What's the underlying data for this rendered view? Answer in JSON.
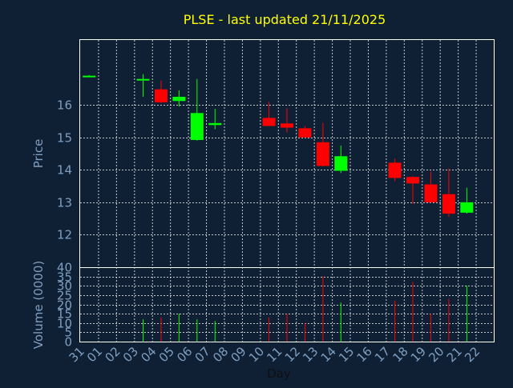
{
  "title": "PLSE - last updated 21/11/2025",
  "colors": {
    "background": "#0f2035",
    "title": "#ffff00",
    "axis_text": "#7f9fc0",
    "frame": "#ffffff",
    "grid": "#ffffff",
    "up": "#00ff00",
    "down": "#ff0000"
  },
  "chart_data": {
    "type": "candlestick",
    "title": "PLSE - last updated 21/11/2025",
    "xlabel": "Day",
    "x_ticks": [
      "31",
      "01",
      "02",
      "03",
      "04",
      "05",
      "06",
      "07",
      "08",
      "09",
      "10",
      "11",
      "12",
      "13",
      "14",
      "15",
      "16",
      "17",
      "18",
      "19",
      "20",
      "21",
      "22"
    ],
    "price_panel": {
      "ylabel": "Price",
      "ylim": [
        11.0,
        18.0
      ],
      "y_ticks": [
        12,
        13,
        14,
        15,
        16
      ],
      "grid": true
    },
    "volume_panel": {
      "ylabel": "Volume (0000)",
      "ylim": [
        0,
        40
      ],
      "y_ticks": [
        0,
        5,
        10,
        15,
        20,
        25,
        30,
        35,
        40
      ],
      "grid": true
    },
    "candles": [
      {
        "day": "31",
        "open": 16.9,
        "high": 16.92,
        "low": 16.85,
        "close": 16.9,
        "volume": 0
      },
      {
        "day": "03",
        "open": 16.8,
        "high": 16.95,
        "low": 16.25,
        "close": 16.8,
        "volume": 12
      },
      {
        "day": "04",
        "open": 16.48,
        "high": 16.75,
        "low": 16.05,
        "close": 16.08,
        "volume": 13
      },
      {
        "day": "05",
        "open": 16.12,
        "high": 16.45,
        "low": 15.95,
        "close": 16.25,
        "volume": 15
      },
      {
        "day": "06",
        "open": 14.92,
        "high": 16.8,
        "low": 14.9,
        "close": 15.75,
        "volume": 12
      },
      {
        "day": "07",
        "open": 15.38,
        "high": 15.88,
        "low": 15.25,
        "close": 15.44,
        "volume": 11
      },
      {
        "day": "10",
        "open": 15.6,
        "high": 16.1,
        "low": 15.35,
        "close": 15.35,
        "volume": 13
      },
      {
        "day": "11",
        "open": 15.43,
        "high": 15.9,
        "low": 15.15,
        "close": 15.3,
        "volume": 15
      },
      {
        "day": "12",
        "open": 15.28,
        "high": 15.35,
        "low": 14.98,
        "close": 15.0,
        "volume": 10
      },
      {
        "day": "13",
        "open": 14.85,
        "high": 15.45,
        "low": 14.1,
        "close": 14.12,
        "volume": 35
      },
      {
        "day": "14",
        "open": 13.97,
        "high": 14.75,
        "low": 13.9,
        "close": 14.42,
        "volume": 21
      },
      {
        "day": "17",
        "open": 14.22,
        "high": 14.35,
        "low": 13.65,
        "close": 13.75,
        "volume": 22
      },
      {
        "day": "18",
        "open": 13.78,
        "high": 13.8,
        "low": 12.95,
        "close": 13.58,
        "volume": 32
      },
      {
        "day": "19",
        "open": 13.55,
        "high": 13.95,
        "low": 12.98,
        "close": 13.0,
        "volume": 15
      },
      {
        "day": "20",
        "open": 13.25,
        "high": 14.05,
        "low": 12.55,
        "close": 12.65,
        "volume": 23
      },
      {
        "day": "21",
        "open": 12.68,
        "high": 13.45,
        "low": 12.65,
        "close": 13.0,
        "volume": 30
      }
    ]
  }
}
